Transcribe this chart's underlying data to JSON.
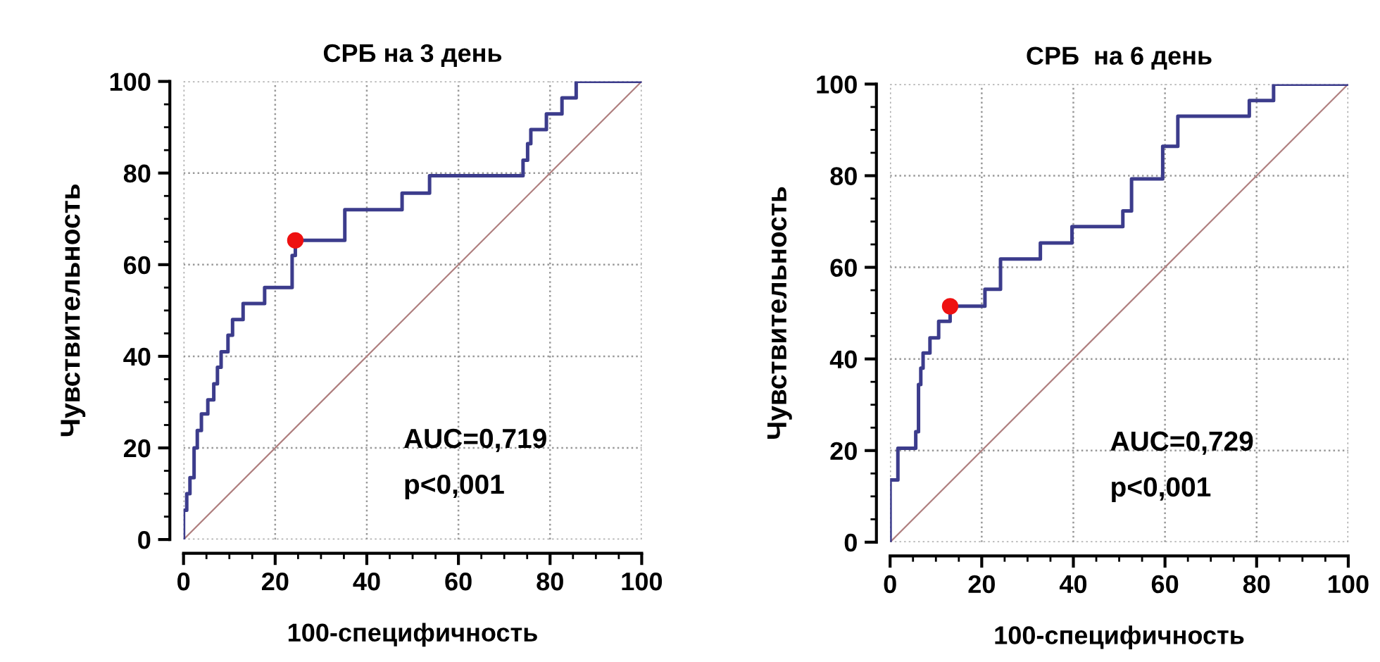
{
  "chart_data": [
    {
      "type": "step",
      "title": "СРБ на 3 день",
      "xlabel": "100-специфичность",
      "ylabel": "Чувствительность",
      "xlim": [
        0,
        100
      ],
      "ylim": [
        0,
        100
      ],
      "xticks": [
        0,
        20,
        40,
        60,
        80,
        100
      ],
      "yticks": [
        0,
        20,
        40,
        60,
        80,
        100
      ],
      "grid": true,
      "annotations": [
        "AUC=0,719",
        "p<0,001"
      ],
      "series": [
        {
          "color": "#3c3c8c",
          "x": [
            0,
            0,
            0.7,
            1.4,
            2.3,
            3,
            3.9,
            5.3,
            6.6,
            7.4,
            8.2,
            9.7,
            10.7,
            13,
            17.7,
            23.7,
            24.4,
            35.2,
            47.7,
            53.7,
            74.1,
            75.1,
            75.8,
            79.2,
            82.6,
            85.7,
            100
          ],
          "values": [
            0,
            6.4,
            10,
            13.5,
            20,
            23.8,
            27.4,
            30.5,
            34,
            37.6,
            41,
            44.6,
            48,
            51.5,
            55,
            62,
            65.3,
            72,
            75.6,
            79.4,
            82.8,
            86.4,
            89.5,
            92.9,
            96.4,
            100,
            100
          ]
        },
        {
          "type": "line",
          "color": "#b08080",
          "x": [
            0,
            100
          ],
          "values": [
            0,
            100
          ]
        },
        {
          "type": "scatter",
          "color": "#ee1111",
          "x": [
            24.4
          ],
          "values": [
            65.3
          ]
        }
      ]
    },
    {
      "type": "step",
      "title": "СРБ  на 6 день",
      "xlabel": "100-специфичность",
      "ylabel": "Чувствительность",
      "xlim": [
        0,
        100
      ],
      "ylim": [
        0,
        100
      ],
      "xticks": [
        0,
        20,
        40,
        60,
        80,
        100
      ],
      "yticks": [
        0,
        20,
        40,
        60,
        80,
        100
      ],
      "grid": true,
      "annotations": [
        "AUC=0,729",
        "p<0,001"
      ],
      "series": [
        {
          "color": "#3c3c8c",
          "x": [
            0,
            0,
            1.7,
            5.6,
            6.2,
            6.7,
            7.2,
            8.7,
            10.6,
            13.1,
            20.7,
            24.1,
            32.8,
            39.7,
            50.8,
            52.7,
            59.5,
            62.8,
            78.4,
            83.7,
            100
          ],
          "values": [
            0,
            13.6,
            20.5,
            24.1,
            34.4,
            38,
            41.3,
            44.6,
            48.2,
            51.5,
            55.2,
            61.8,
            65.3,
            68.9,
            72.3,
            79.3,
            86.4,
            93,
            96.4,
            100,
            100
          ]
        },
        {
          "type": "line",
          "color": "#b08080",
          "x": [
            0,
            100
          ],
          "values": [
            0,
            100
          ]
        },
        {
          "type": "scatter",
          "color": "#ee1111",
          "x": [
            13.1
          ],
          "values": [
            51.5
          ]
        }
      ]
    }
  ]
}
